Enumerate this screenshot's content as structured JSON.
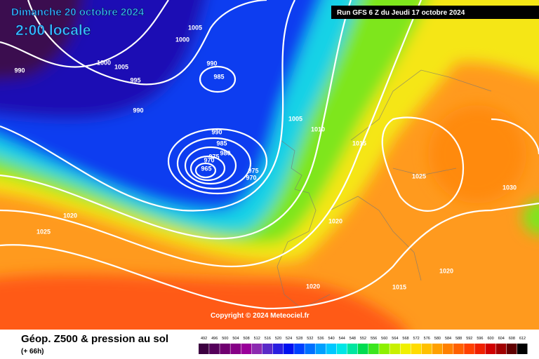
{
  "header": {
    "date": "Dimanche 20 octobre 2024",
    "time": "2:00 locale",
    "run": "Run GFS 6 Z du Jeudi 17 octobre 2024"
  },
  "copyright": "Copyright © 2024 Meteociel.fr",
  "isobar_labels": [
    1005,
    1000,
    1000,
    1005,
    990,
    995,
    990,
    985,
    990,
    1005,
    1010,
    990,
    985,
    980,
    975,
    970,
    965,
    975,
    970,
    1015,
    1025,
    1030,
    1020,
    1025,
    1020,
    1020,
    1015,
    1020
  ],
  "footer": {
    "title": "Géop. Z500 & pression au sol",
    "lead": "(+ 66h)"
  },
  "scale": {
    "values": [
      492,
      496,
      500,
      504,
      508,
      512,
      516,
      520,
      524,
      528,
      532,
      536,
      540,
      544,
      548,
      552,
      556,
      560,
      564,
      568,
      572,
      576,
      580,
      584,
      588,
      592,
      596,
      600,
      604,
      608,
      612
    ],
    "colors": [
      "#3c0040",
      "#55005a",
      "#700070",
      "#860086",
      "#9a009a",
      "#8c2ab0",
      "#5a2ac8",
      "#2a1ee0",
      "#0010f0",
      "#0040ff",
      "#0070ff",
      "#00a0ff",
      "#00c8ff",
      "#00e6e6",
      "#00e6a0",
      "#00dc50",
      "#3ce61e",
      "#8cf000",
      "#c8f000",
      "#f0f000",
      "#ffdc00",
      "#ffc000",
      "#ffa000",
      "#ff8000",
      "#ff6000",
      "#ff4000",
      "#f02000",
      "#d00000",
      "#a00000",
      "#600000",
      "#000000"
    ]
  }
}
